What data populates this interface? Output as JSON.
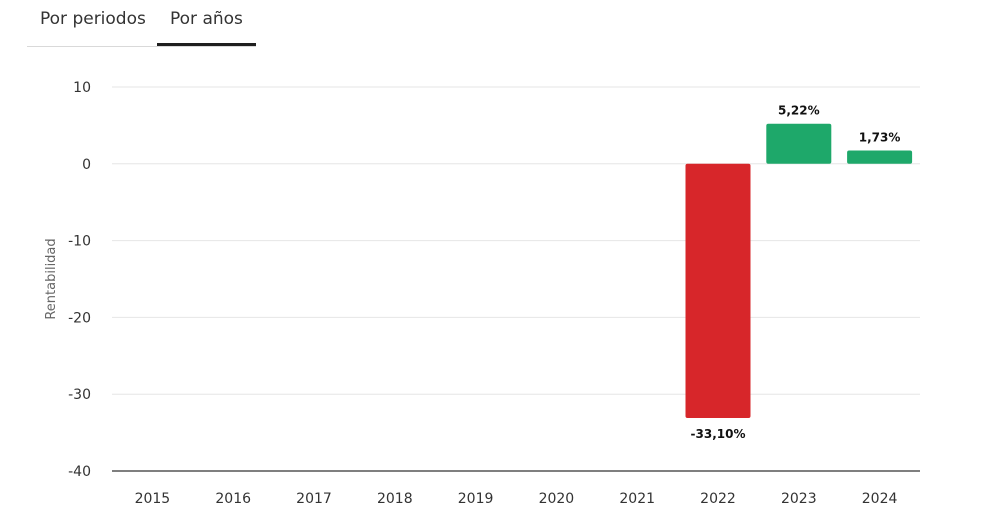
{
  "tabs": [
    {
      "label": "Por periodos",
      "active": false
    },
    {
      "label": "Por años",
      "active": true
    }
  ],
  "chart_data": {
    "type": "bar",
    "title": "",
    "xlabel": "",
    "ylabel": "Rentabilidad",
    "ylim": [
      -40,
      10
    ],
    "yticks": [
      10,
      0,
      -10,
      -20,
      -30,
      -40
    ],
    "grid": true,
    "categories": [
      "2015",
      "2016",
      "2017",
      "2018",
      "2019",
      "2020",
      "2021",
      "2022",
      "2023",
      "2024"
    ],
    "values": [
      null,
      null,
      null,
      null,
      null,
      null,
      null,
      -33.1,
      5.22,
      1.73
    ],
    "data_labels": [
      "",
      "",
      "",
      "",
      "",
      "",
      "",
      "-33,10%",
      "5,22%",
      "1,73%"
    ],
    "colors": {
      "positive": "#1ea86a",
      "negative": "#d7262a",
      "grid": "#e6e6e6",
      "axis": "#333333"
    }
  }
}
